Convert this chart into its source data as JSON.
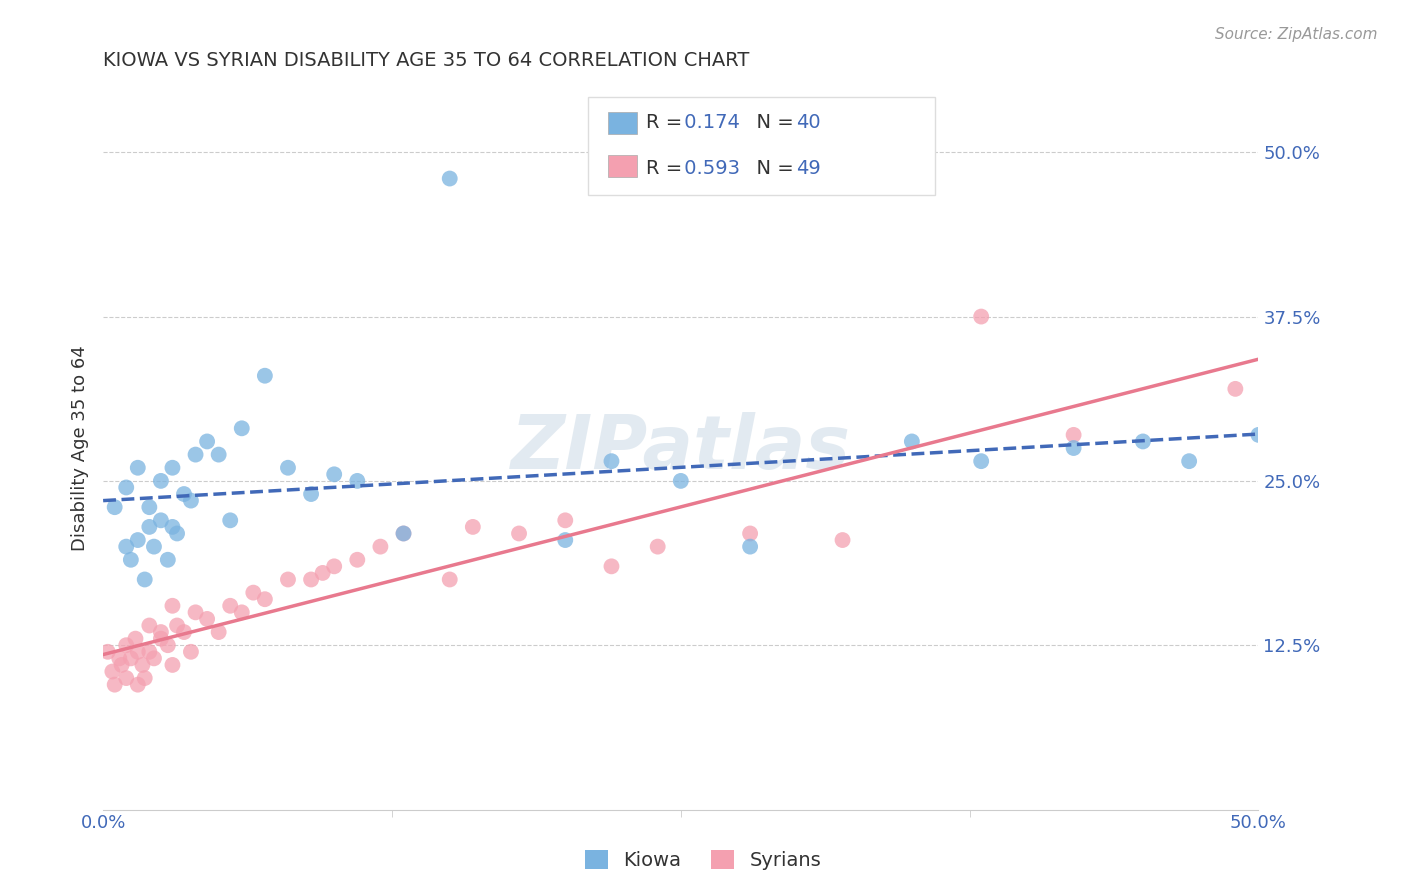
{
  "title": "KIOWA VS SYRIAN DISABILITY AGE 35 TO 64 CORRELATION CHART",
  "source": "Source: ZipAtlas.com",
  "ylabel": "Disability Age 35 to 64",
  "y_ticks": [
    0.125,
    0.25,
    0.375,
    0.5
  ],
  "y_tick_labels": [
    "12.5%",
    "25.0%",
    "37.5%",
    "50.0%"
  ],
  "x_lim": [
    0.0,
    0.5
  ],
  "y_lim": [
    0.0,
    0.55
  ],
  "kiowa_color": "#7ab3e0",
  "syrian_color": "#f4a0b0",
  "kiowa_line_color": "#4169b8",
  "syrian_line_color": "#e8798e",
  "kiowa_R": 0.174,
  "kiowa_N": 40,
  "syrian_R": 0.593,
  "syrian_N": 49,
  "watermark": "ZIPatlas",
  "kiowa_x": [
    0.005,
    0.01,
    0.01,
    0.012,
    0.015,
    0.015,
    0.018,
    0.02,
    0.02,
    0.022,
    0.025,
    0.025,
    0.028,
    0.03,
    0.03,
    0.032,
    0.035,
    0.038,
    0.04,
    0.045,
    0.05,
    0.055,
    0.06,
    0.07,
    0.08,
    0.09,
    0.1,
    0.11,
    0.13,
    0.15,
    0.2,
    0.22,
    0.25,
    0.28,
    0.35,
    0.38,
    0.42,
    0.45,
    0.47,
    0.5
  ],
  "kiowa_y": [
    0.23,
    0.2,
    0.245,
    0.19,
    0.205,
    0.26,
    0.175,
    0.215,
    0.23,
    0.2,
    0.22,
    0.25,
    0.19,
    0.215,
    0.26,
    0.21,
    0.24,
    0.235,
    0.27,
    0.28,
    0.27,
    0.22,
    0.29,
    0.33,
    0.26,
    0.24,
    0.255,
    0.25,
    0.21,
    0.48,
    0.205,
    0.265,
    0.25,
    0.2,
    0.28,
    0.265,
    0.275,
    0.28,
    0.265,
    0.285
  ],
  "syrian_x": [
    0.002,
    0.004,
    0.005,
    0.007,
    0.008,
    0.01,
    0.01,
    0.012,
    0.014,
    0.015,
    0.015,
    0.017,
    0.018,
    0.02,
    0.02,
    0.022,
    0.025,
    0.025,
    0.028,
    0.03,
    0.03,
    0.032,
    0.035,
    0.038,
    0.04,
    0.045,
    0.05,
    0.055,
    0.06,
    0.065,
    0.07,
    0.08,
    0.09,
    0.095,
    0.1,
    0.11,
    0.12,
    0.13,
    0.15,
    0.16,
    0.18,
    0.2,
    0.22,
    0.24,
    0.28,
    0.32,
    0.38,
    0.42,
    0.49
  ],
  "syrian_y": [
    0.12,
    0.105,
    0.095,
    0.115,
    0.11,
    0.1,
    0.125,
    0.115,
    0.13,
    0.095,
    0.12,
    0.11,
    0.1,
    0.14,
    0.12,
    0.115,
    0.135,
    0.13,
    0.125,
    0.11,
    0.155,
    0.14,
    0.135,
    0.12,
    0.15,
    0.145,
    0.135,
    0.155,
    0.15,
    0.165,
    0.16,
    0.175,
    0.175,
    0.18,
    0.185,
    0.19,
    0.2,
    0.21,
    0.175,
    0.215,
    0.21,
    0.22,
    0.185,
    0.2,
    0.21,
    0.205,
    0.375,
    0.285,
    0.32
  ]
}
